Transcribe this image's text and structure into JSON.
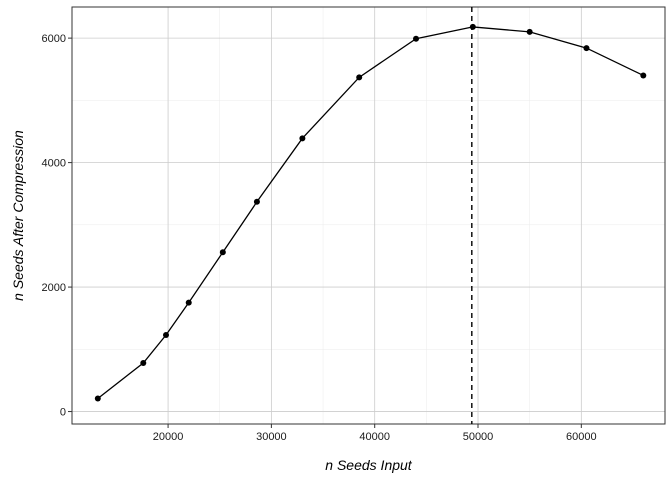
{
  "chart_data": {
    "type": "line",
    "xlabel": "n Seeds Input",
    "ylabel": "n Seeds After Compression",
    "xlim": [
      10700,
      68100
    ],
    "ylim": [
      -200,
      6500
    ],
    "xticks": [
      20000,
      30000,
      40000,
      50000,
      60000
    ],
    "yticks": [
      0,
      2000,
      4000,
      6000
    ],
    "grid": true,
    "series": [
      {
        "x": [
          13200,
          17600,
          19800,
          22000,
          25300,
          28600,
          33000,
          38500,
          44000,
          49500,
          55000,
          60500,
          66000
        ],
        "y": [
          210,
          780,
          1230,
          1750,
          2560,
          3370,
          4390,
          5370,
          5990,
          6180,
          6100,
          5840,
          5400
        ],
        "color": "#000000"
      }
    ],
    "vline": {
      "x": 49400,
      "style": "dashed",
      "color": "#000000"
    }
  }
}
